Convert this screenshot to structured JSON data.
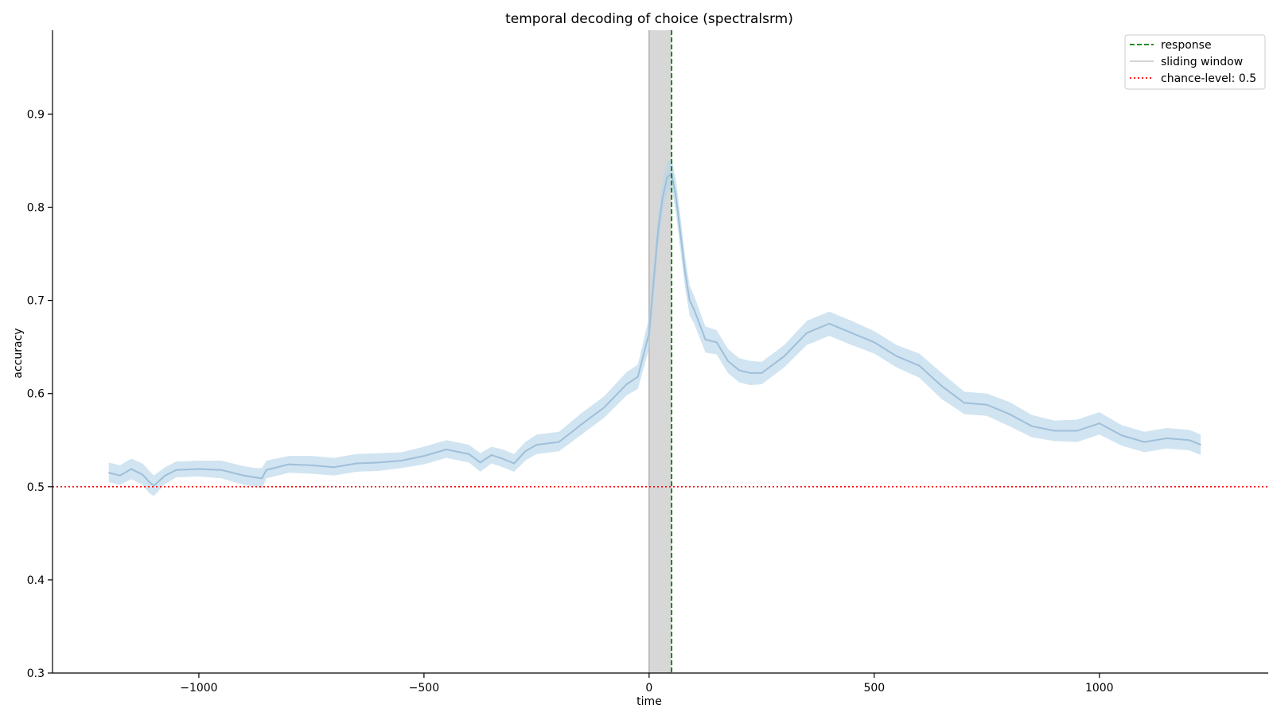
{
  "chart_data": {
    "type": "line",
    "title": "temporal decoding of choice (spectralsrm)",
    "xlabel": "time",
    "ylabel": "accuracy",
    "xlim": [
      -1325,
      1375
    ],
    "ylim": [
      0.3,
      0.99
    ],
    "xticks": [
      -1000,
      -500,
      0,
      500,
      1000
    ],
    "xtick_labels": [
      "−1000",
      "−500",
      "0",
      "500",
      "1000"
    ],
    "yticks": [
      0.3,
      0.4,
      0.5,
      0.6,
      0.7,
      0.8,
      0.9
    ],
    "ytick_labels": [
      "0.3",
      "0.4",
      "0.5",
      "0.6",
      "0.7",
      "0.8",
      "0.9"
    ],
    "grid": false,
    "legend_position": "top-right",
    "legend": [
      {
        "label": "response",
        "style": "dashed",
        "color": "#008000"
      },
      {
        "label": "sliding window",
        "style": "solid",
        "color": "#d3d3d3"
      },
      {
        "label": "chance-level: 0.5",
        "style": "dotted",
        "color": "#ff0000"
      }
    ],
    "response_x": 50,
    "sliding_window": [
      0,
      50
    ],
    "chance_level": 0.5,
    "series": [
      {
        "line_color": "#9fbfd9",
        "band_color": "#b9d5ea",
        "x": [
          -1200,
          -1175,
          -1150,
          -1125,
          -1110,
          -1100,
          -1075,
          -1050,
          -1000,
          -950,
          -900,
          -875,
          -860,
          -850,
          -800,
          -750,
          -700,
          -650,
          -600,
          -550,
          -500,
          -450,
          -400,
          -375,
          -350,
          -325,
          -300,
          -275,
          -250,
          -200,
          -150,
          -100,
          -50,
          -25,
          0,
          10,
          20,
          30,
          40,
          50,
          60,
          70,
          80,
          90,
          100,
          125,
          150,
          175,
          200,
          225,
          250,
          300,
          350,
          400,
          450,
          500,
          550,
          600,
          650,
          700,
          750,
          800,
          850,
          900,
          950,
          1000,
          1050,
          1100,
          1150,
          1200,
          1225
        ],
        "mean": [
          0.515,
          0.512,
          0.519,
          0.513,
          0.505,
          0.501,
          0.512,
          0.518,
          0.519,
          0.518,
          0.512,
          0.51,
          0.509,
          0.518,
          0.524,
          0.523,
          0.521,
          0.525,
          0.526,
          0.528,
          0.533,
          0.54,
          0.535,
          0.526,
          0.534,
          0.53,
          0.525,
          0.538,
          0.545,
          0.548,
          0.567,
          0.585,
          0.61,
          0.618,
          0.665,
          0.72,
          0.775,
          0.81,
          0.832,
          0.836,
          0.81,
          0.77,
          0.73,
          0.7,
          0.69,
          0.658,
          0.655,
          0.635,
          0.625,
          0.622,
          0.622,
          0.64,
          0.665,
          0.675,
          0.665,
          0.655,
          0.64,
          0.63,
          0.608,
          0.59,
          0.588,
          0.578,
          0.565,
          0.56,
          0.56,
          0.568,
          0.555,
          0.548,
          0.552,
          0.55,
          0.545
        ],
        "lower": [
          0.505,
          0.502,
          0.508,
          0.502,
          0.493,
          0.49,
          0.503,
          0.51,
          0.511,
          0.509,
          0.502,
          0.5,
          0.498,
          0.509,
          0.515,
          0.514,
          0.512,
          0.516,
          0.517,
          0.52,
          0.524,
          0.531,
          0.526,
          0.516,
          0.525,
          0.521,
          0.516,
          0.528,
          0.535,
          0.538,
          0.556,
          0.574,
          0.598,
          0.605,
          0.648,
          0.702,
          0.757,
          0.793,
          0.815,
          0.82,
          0.792,
          0.752,
          0.713,
          0.684,
          0.675,
          0.644,
          0.642,
          0.622,
          0.612,
          0.609,
          0.61,
          0.628,
          0.652,
          0.662,
          0.652,
          0.643,
          0.628,
          0.617,
          0.594,
          0.578,
          0.576,
          0.565,
          0.553,
          0.549,
          0.548,
          0.556,
          0.544,
          0.537,
          0.541,
          0.539,
          0.534
        ],
        "upper": [
          0.526,
          0.523,
          0.53,
          0.525,
          0.517,
          0.512,
          0.521,
          0.527,
          0.528,
          0.528,
          0.522,
          0.52,
          0.52,
          0.528,
          0.533,
          0.533,
          0.531,
          0.535,
          0.536,
          0.537,
          0.543,
          0.55,
          0.545,
          0.536,
          0.543,
          0.54,
          0.535,
          0.548,
          0.556,
          0.559,
          0.579,
          0.597,
          0.623,
          0.631,
          0.682,
          0.738,
          0.793,
          0.827,
          0.849,
          0.852,
          0.828,
          0.788,
          0.747,
          0.716,
          0.705,
          0.672,
          0.668,
          0.648,
          0.638,
          0.635,
          0.634,
          0.652,
          0.678,
          0.688,
          0.678,
          0.667,
          0.652,
          0.643,
          0.622,
          0.602,
          0.6,
          0.591,
          0.577,
          0.571,
          0.572,
          0.58,
          0.566,
          0.559,
          0.563,
          0.561,
          0.556
        ]
      }
    ]
  }
}
